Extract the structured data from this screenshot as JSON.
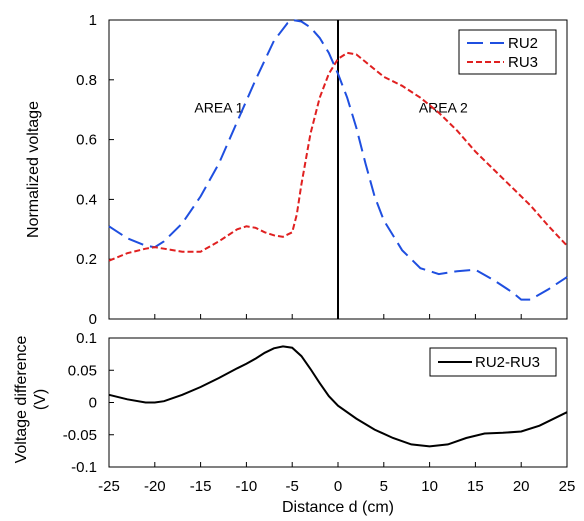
{
  "chart_data": [
    {
      "type": "line",
      "title": "",
      "xlabel": "",
      "ylabel": "Normalized voltage",
      "xlim": [
        -25,
        25
      ],
      "ylim": [
        0,
        1
      ],
      "y_ticks": [
        "0",
        "0.2",
        "0.4",
        "0.6",
        "0.8",
        "1"
      ],
      "grid": false,
      "legend_position": "top-right",
      "annotations": [
        {
          "text": "AREA 1",
          "x": -13,
          "y": 0.69
        },
        {
          "text": "AREA 2",
          "x": 11.5,
          "y": 0.69
        }
      ],
      "vertical_line_x": 0,
      "series": [
        {
          "name": "RU2",
          "style": "dashed",
          "color": "#1f4fe0",
          "x": [
            -25,
            -23,
            -21,
            -20,
            -19,
            -17,
            -15,
            -13,
            -11,
            -9,
            -7,
            -5.5,
            -5,
            -4,
            -3,
            -2,
            -1,
            0,
            1,
            2,
            3,
            4,
            5,
            7,
            9,
            11,
            13,
            15,
            17,
            19,
            20,
            21,
            23,
            25
          ],
          "y": [
            0.31,
            0.27,
            0.245,
            0.24,
            0.26,
            0.32,
            0.41,
            0.52,
            0.66,
            0.8,
            0.93,
            0.99,
            1.0,
            0.995,
            0.975,
            0.94,
            0.89,
            0.82,
            0.74,
            0.64,
            0.52,
            0.41,
            0.33,
            0.23,
            0.17,
            0.15,
            0.16,
            0.165,
            0.13,
            0.09,
            0.065,
            0.065,
            0.1,
            0.14
          ]
        },
        {
          "name": "RU3",
          "style": "dashed",
          "color": "#e02020",
          "x": [
            -25,
            -23,
            -21,
            -20,
            -19,
            -17,
            -15,
            -13,
            -11,
            -10,
            -9,
            -8,
            -7,
            -6,
            -5,
            -4.5,
            -4,
            -3,
            -2,
            -1,
            0,
            1,
            2,
            3,
            5,
            7,
            9,
            11,
            13,
            15,
            17,
            19,
            21,
            23,
            25
          ],
          "y": [
            0.195,
            0.22,
            0.235,
            0.24,
            0.235,
            0.225,
            0.225,
            0.26,
            0.3,
            0.31,
            0.305,
            0.29,
            0.28,
            0.275,
            0.29,
            0.35,
            0.45,
            0.62,
            0.74,
            0.82,
            0.87,
            0.89,
            0.885,
            0.86,
            0.81,
            0.78,
            0.74,
            0.69,
            0.63,
            0.56,
            0.5,
            0.44,
            0.38,
            0.31,
            0.245
          ]
        }
      ]
    },
    {
      "type": "line",
      "title": "",
      "xlabel": "Distance d (cm)",
      "ylabel": "Voltage difference (V)",
      "ylabel_lines": [
        "Voltage difference",
        "(V)"
      ],
      "xlim": [
        -25,
        25
      ],
      "ylim": [
        -0.1,
        0.1
      ],
      "x_ticks": [
        "-25",
        "-20",
        "-15",
        "-10",
        "-5",
        "0",
        "5",
        "10",
        "15",
        "20",
        "25"
      ],
      "y_ticks": [
        "-0.1",
        "-0.05",
        "0",
        "0.05",
        "0.1"
      ],
      "grid": false,
      "legend_position": "top-right",
      "series": [
        {
          "name": "RU2-RU3",
          "style": "solid",
          "color": "#000000",
          "x": [
            -25,
            -23,
            -21,
            -20,
            -19,
            -17,
            -15,
            -13,
            -11,
            -10,
            -9,
            -8,
            -7,
            -6,
            -5,
            -4,
            -3,
            -2,
            -1,
            0,
            2,
            4,
            6,
            8,
            10,
            12,
            14,
            16,
            18,
            20,
            22,
            25
          ],
          "y": [
            0.012,
            0.005,
            0.0,
            0.0,
            0.002,
            0.012,
            0.024,
            0.038,
            0.053,
            0.06,
            0.068,
            0.077,
            0.084,
            0.087,
            0.085,
            0.072,
            0.052,
            0.03,
            0.01,
            -0.005,
            -0.025,
            -0.042,
            -0.055,
            -0.065,
            -0.068,
            -0.065,
            -0.055,
            -0.048,
            -0.047,
            -0.045,
            -0.036,
            -0.015
          ]
        }
      ]
    }
  ]
}
